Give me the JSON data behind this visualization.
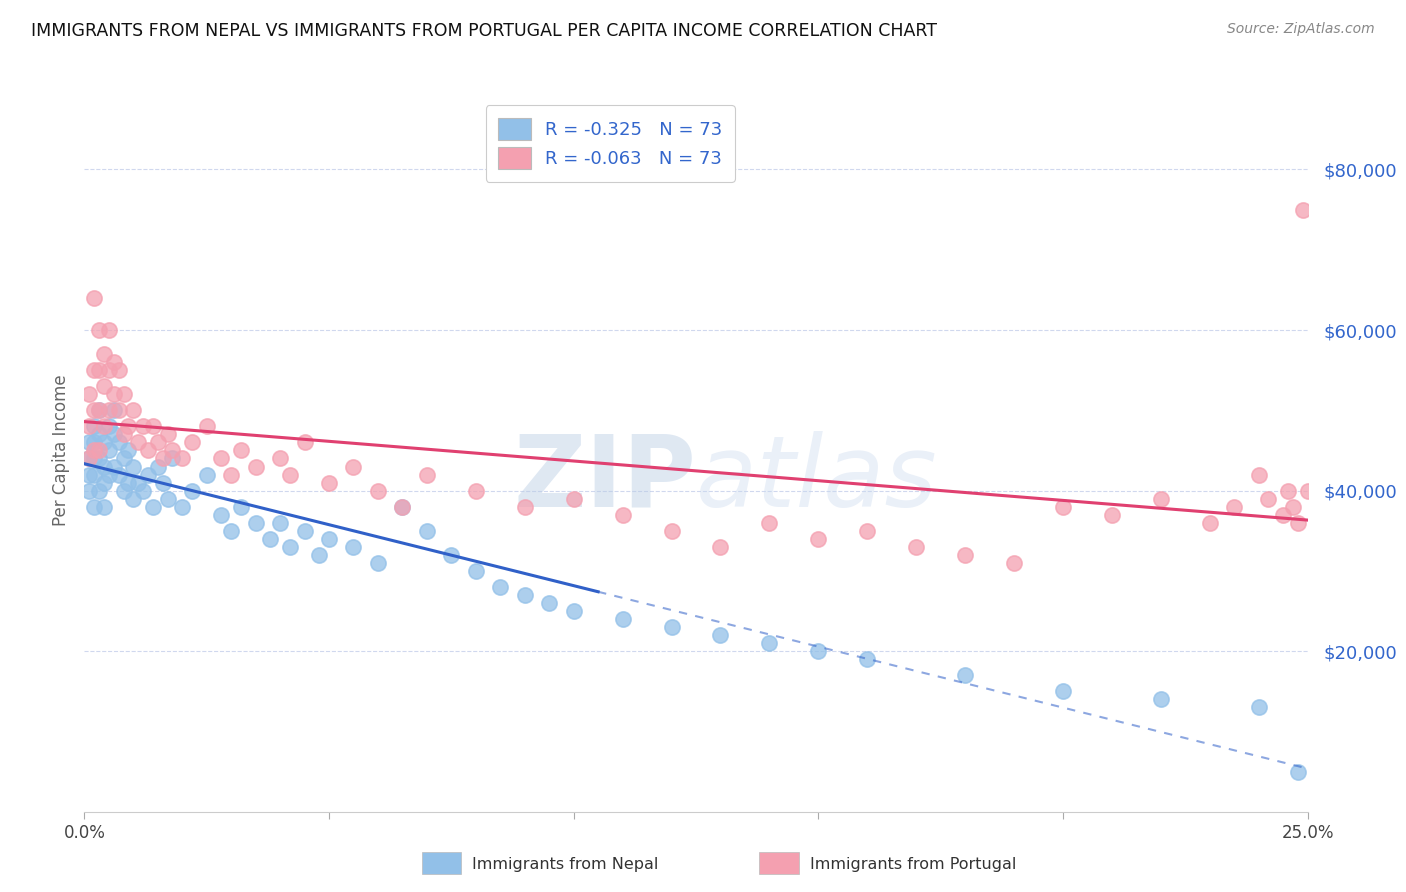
{
  "title": "IMMIGRANTS FROM NEPAL VS IMMIGRANTS FROM PORTUGAL PER CAPITA INCOME CORRELATION CHART",
  "source": "Source: ZipAtlas.com",
  "ylabel": "Per Capita Income",
  "y_ticks": [
    20000,
    40000,
    60000,
    80000
  ],
  "y_tick_labels": [
    "$20,000",
    "$40,000",
    "$60,000",
    "$80,000"
  ],
  "xlim": [
    0.0,
    0.25
  ],
  "ylim": [
    0,
    90000
  ],
  "legend_nepal": "R = -0.325   N = 73",
  "legend_portugal": "R = -0.063   N = 73",
  "legend_label_nepal": "Immigrants from Nepal",
  "legend_label_portugal": "Immigrants from Portugal",
  "nepal_color": "#92c0e8",
  "portugal_color": "#f4a0b0",
  "nepal_line_color": "#3060c8",
  "portugal_line_color": "#e04070",
  "watermark_zip": "ZIP",
  "watermark_atlas": "atlas",
  "background_color": "#ffffff",
  "grid_color": "#d0d8ee",
  "nepal_x": [
    0.001,
    0.001,
    0.001,
    0.001,
    0.002,
    0.002,
    0.002,
    0.002,
    0.002,
    0.003,
    0.003,
    0.003,
    0.003,
    0.004,
    0.004,
    0.004,
    0.004,
    0.005,
    0.005,
    0.005,
    0.006,
    0.006,
    0.006,
    0.007,
    0.007,
    0.008,
    0.008,
    0.009,
    0.009,
    0.01,
    0.01,
    0.011,
    0.012,
    0.013,
    0.014,
    0.015,
    0.016,
    0.017,
    0.018,
    0.02,
    0.022,
    0.025,
    0.028,
    0.03,
    0.032,
    0.035,
    0.038,
    0.04,
    0.042,
    0.045,
    0.048,
    0.05,
    0.055,
    0.06,
    0.065,
    0.07,
    0.075,
    0.08,
    0.085,
    0.09,
    0.095,
    0.1,
    0.11,
    0.12,
    0.13,
    0.14,
    0.15,
    0.16,
    0.18,
    0.2,
    0.22,
    0.24,
    0.248
  ],
  "nepal_y": [
    46000,
    44000,
    42000,
    40000,
    48000,
    46000,
    44000,
    42000,
    38000,
    50000,
    47000,
    44000,
    40000,
    46000,
    43000,
    41000,
    38000,
    48000,
    45000,
    42000,
    50000,
    47000,
    43000,
    46000,
    42000,
    44000,
    40000,
    45000,
    41000,
    43000,
    39000,
    41000,
    40000,
    42000,
    38000,
    43000,
    41000,
    39000,
    44000,
    38000,
    40000,
    42000,
    37000,
    35000,
    38000,
    36000,
    34000,
    36000,
    33000,
    35000,
    32000,
    34000,
    33000,
    31000,
    38000,
    35000,
    32000,
    30000,
    28000,
    27000,
    26000,
    25000,
    24000,
    23000,
    22000,
    21000,
    20000,
    19000,
    17000,
    15000,
    14000,
    13000,
    5000
  ],
  "portugal_x": [
    0.001,
    0.001,
    0.001,
    0.002,
    0.002,
    0.002,
    0.002,
    0.003,
    0.003,
    0.003,
    0.003,
    0.004,
    0.004,
    0.004,
    0.005,
    0.005,
    0.005,
    0.006,
    0.006,
    0.007,
    0.007,
    0.008,
    0.008,
    0.009,
    0.01,
    0.011,
    0.012,
    0.013,
    0.014,
    0.015,
    0.016,
    0.017,
    0.018,
    0.02,
    0.022,
    0.025,
    0.028,
    0.03,
    0.032,
    0.035,
    0.04,
    0.042,
    0.045,
    0.05,
    0.055,
    0.06,
    0.065,
    0.07,
    0.08,
    0.09,
    0.1,
    0.11,
    0.12,
    0.13,
    0.14,
    0.15,
    0.16,
    0.17,
    0.18,
    0.19,
    0.2,
    0.21,
    0.22,
    0.23,
    0.235,
    0.24,
    0.242,
    0.245,
    0.246,
    0.247,
    0.248,
    0.249,
    0.25
  ],
  "portugal_y": [
    52000,
    48000,
    44000,
    64000,
    55000,
    50000,
    45000,
    60000,
    55000,
    50000,
    45000,
    57000,
    53000,
    48000,
    60000,
    55000,
    50000,
    56000,
    52000,
    55000,
    50000,
    52000,
    47000,
    48000,
    50000,
    46000,
    48000,
    45000,
    48000,
    46000,
    44000,
    47000,
    45000,
    44000,
    46000,
    48000,
    44000,
    42000,
    45000,
    43000,
    44000,
    42000,
    46000,
    41000,
    43000,
    40000,
    38000,
    42000,
    40000,
    38000,
    39000,
    37000,
    35000,
    33000,
    36000,
    34000,
    35000,
    33000,
    32000,
    31000,
    38000,
    37000,
    39000,
    36000,
    38000,
    42000,
    39000,
    37000,
    40000,
    38000,
    36000,
    75000,
    40000
  ]
}
